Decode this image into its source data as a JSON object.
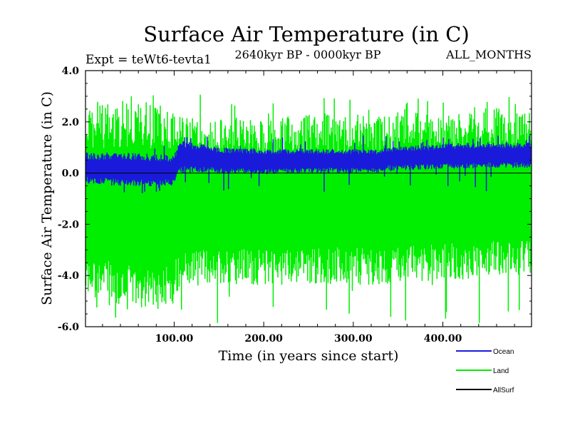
{
  "chart_data": {
    "type": "line",
    "title": "Surface Air Temperature (in C)",
    "subtitle_left": "Expt = teWt6-tevta1",
    "subtitle_center": "2640kyr BP - 0000kyr BP",
    "subtitle_right": "ALL_MONTHS",
    "xlabel": "Time (in years since start)",
    "ylabel": "Surface Air Temperature (in C)",
    "xlim": [
      1,
      499
    ],
    "ylim": [
      -6.0,
      4.0
    ],
    "x_ticks": [
      {
        "value": 100,
        "label": "100.00"
      },
      {
        "value": 200,
        "label": "200.00"
      },
      {
        "value": 300,
        "label": "300.00"
      },
      {
        "value": 400,
        "label": "400.00"
      }
    ],
    "y_ticks": [
      {
        "value": -6.0,
        "label": "-6.0"
      },
      {
        "value": -4.0,
        "label": "-4.0"
      },
      {
        "value": -2.0,
        "label": "-2.0"
      },
      {
        "value": 0.0,
        "label": "0.0"
      },
      {
        "value": 2.0,
        "label": "2.0"
      },
      {
        "value": 4.0,
        "label": "4.0"
      }
    ],
    "zero_line": 0.0,
    "series": [
      {
        "name": "Land",
        "color": "#00ee00",
        "draw": "envelope",
        "x": [
          1,
          50,
          100,
          105,
          150,
          200,
          250,
          300,
          350,
          400,
          450,
          499
        ],
        "upper": [
          2.6,
          2.8,
          2.6,
          2.2,
          2.1,
          2.1,
          2.3,
          2.3,
          2.4,
          2.4,
          2.5,
          2.4
        ],
        "lower": [
          -4.9,
          -5.4,
          -5.1,
          -4.5,
          -4.3,
          -4.4,
          -4.3,
          -4.4,
          -4.3,
          -4.2,
          -4.1,
          -4.0
        ],
        "spike_max": 3.1,
        "spike_min": -5.9
      },
      {
        "name": "Ocean",
        "color": "#1a1adb",
        "draw": "envelope",
        "x": [
          1,
          50,
          100,
          105,
          150,
          200,
          250,
          300,
          330,
          335,
          400,
          450,
          499
        ],
        "upper": [
          0.8,
          0.8,
          0.7,
          1.3,
          1.0,
          0.95,
          0.95,
          0.95,
          0.9,
          1.0,
          1.15,
          1.2,
          1.2
        ],
        "lower": [
          -0.4,
          -0.55,
          -0.5,
          0.0,
          0.0,
          -0.05,
          0.0,
          0.0,
          0.0,
          0.1,
          0.15,
          0.2,
          0.2
        ],
        "spike_max": 1.5,
        "spike_min": -0.8
      },
      {
        "name": "AllSurf",
        "color": "#000000",
        "draw": "none"
      }
    ],
    "legend": {
      "placement": "bottom-right",
      "entries": [
        "Ocean",
        "Land",
        "AllSurf"
      ]
    }
  }
}
